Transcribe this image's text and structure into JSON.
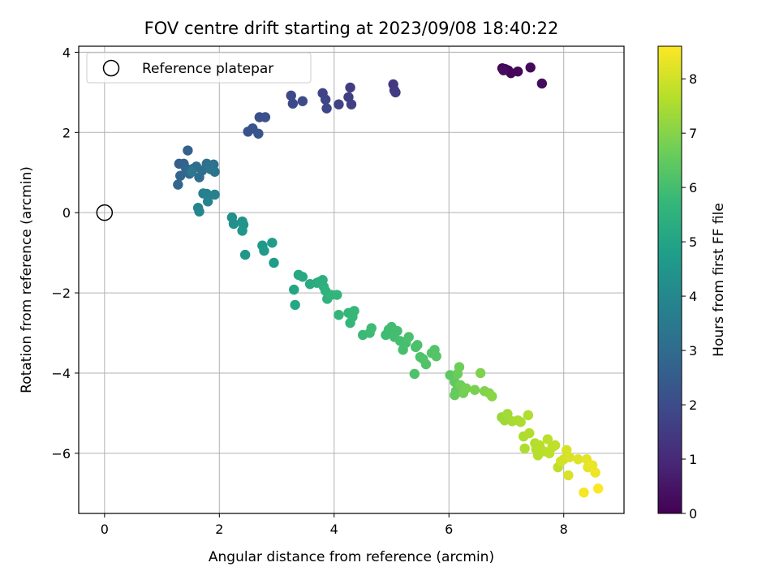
{
  "chart_data": {
    "type": "scatter",
    "title": "FOV centre drift starting at 2023/09/08 18:40:22",
    "xlabel": "Angular distance from reference (arcmin)",
    "ylabel": "Rotation from reference (arcmin)",
    "xlim": [
      -0.45,
      9.05
    ],
    "ylim": [
      -7.5,
      4.15
    ],
    "xticks": [
      "0",
      "2",
      "4",
      "6",
      "8"
    ],
    "yticks": [
      "−6",
      "−4",
      "−2",
      "0",
      "2",
      "4"
    ],
    "grid": true,
    "legend": {
      "position": "top-left",
      "entries": [
        "Reference platepar"
      ]
    },
    "colorbar": {
      "label": "Hours from first FF file",
      "range": [
        0,
        8.6
      ],
      "ticks": [
        "0",
        "1",
        "2",
        "3",
        "4",
        "5",
        "6",
        "7",
        "8"
      ],
      "colormap": [
        "#440154",
        "#482878",
        "#3e4989",
        "#31688e",
        "#26828e",
        "#1f9e89",
        "#35b779",
        "#6ece58",
        "#b5de2b",
        "#fde725"
      ]
    },
    "reference_point": {
      "x": 0,
      "y": 0
    },
    "points": [
      {
        "x": 6.93,
        "y": 3.6,
        "c": 0.02
      },
      {
        "x": 6.98,
        "y": 3.58,
        "c": 0.05
      },
      {
        "x": 7.03,
        "y": 3.55,
        "c": 0.08
      },
      {
        "x": 7.08,
        "y": 3.48,
        "c": 0.12
      },
      {
        "x": 7.2,
        "y": 3.52,
        "c": 0.15
      },
      {
        "x": 7.42,
        "y": 3.62,
        "c": 0.2
      },
      {
        "x": 7.62,
        "y": 3.22,
        "c": 0.25
      },
      {
        "x": 6.95,
        "y": 3.55,
        "c": 0.3
      },
      {
        "x": 5.03,
        "y": 3.2,
        "c": 1.4
      },
      {
        "x": 5.05,
        "y": 3.05,
        "c": 1.45
      },
      {
        "x": 5.07,
        "y": 3.0,
        "c": 1.5
      },
      {
        "x": 4.28,
        "y": 3.12,
        "c": 1.55
      },
      {
        "x": 4.25,
        "y": 2.88,
        "c": 1.6
      },
      {
        "x": 4.3,
        "y": 2.7,
        "c": 1.65
      },
      {
        "x": 4.08,
        "y": 2.7,
        "c": 1.7
      },
      {
        "x": 3.8,
        "y": 2.98,
        "c": 1.75
      },
      {
        "x": 3.85,
        "y": 2.82,
        "c": 1.8
      },
      {
        "x": 3.87,
        "y": 2.6,
        "c": 1.85
      },
      {
        "x": 3.25,
        "y": 2.92,
        "c": 1.9
      },
      {
        "x": 3.28,
        "y": 2.72,
        "c": 1.95
      },
      {
        "x": 3.45,
        "y": 2.78,
        "c": 2.0
      },
      {
        "x": 2.7,
        "y": 2.38,
        "c": 2.1
      },
      {
        "x": 2.8,
        "y": 2.38,
        "c": 2.15
      },
      {
        "x": 2.5,
        "y": 2.02,
        "c": 2.2
      },
      {
        "x": 2.58,
        "y": 2.1,
        "c": 2.25
      },
      {
        "x": 2.68,
        "y": 1.97,
        "c": 2.3
      },
      {
        "x": 1.3,
        "y": 1.22,
        "c": 2.6
      },
      {
        "x": 1.38,
        "y": 1.22,
        "c": 2.65
      },
      {
        "x": 1.45,
        "y": 1.55,
        "c": 2.7
      },
      {
        "x": 1.32,
        "y": 0.92,
        "c": 2.75
      },
      {
        "x": 1.28,
        "y": 0.7,
        "c": 2.8
      },
      {
        "x": 1.42,
        "y": 1.1,
        "c": 2.85
      },
      {
        "x": 1.48,
        "y": 0.97,
        "c": 2.9
      },
      {
        "x": 1.55,
        "y": 1.1,
        "c": 2.95
      },
      {
        "x": 1.6,
        "y": 1.15,
        "c": 3.0
      },
      {
        "x": 1.65,
        "y": 0.88,
        "c": 3.05
      },
      {
        "x": 1.7,
        "y": 1.05,
        "c": 3.1
      },
      {
        "x": 1.78,
        "y": 1.22,
        "c": 3.15
      },
      {
        "x": 1.82,
        "y": 1.15,
        "c": 3.2
      },
      {
        "x": 1.9,
        "y": 1.2,
        "c": 3.25
      },
      {
        "x": 1.92,
        "y": 1.02,
        "c": 3.3
      },
      {
        "x": 1.85,
        "y": 1.08,
        "c": 3.35
      },
      {
        "x": 1.52,
        "y": 1.02,
        "c": 3.4
      },
      {
        "x": 1.72,
        "y": 0.48,
        "c": 3.7
      },
      {
        "x": 1.78,
        "y": 0.47,
        "c": 3.75
      },
      {
        "x": 1.92,
        "y": 0.45,
        "c": 3.8
      },
      {
        "x": 1.8,
        "y": 0.28,
        "c": 3.85
      },
      {
        "x": 1.63,
        "y": 0.12,
        "c": 3.9
      },
      {
        "x": 1.65,
        "y": 0.03,
        "c": 3.95
      },
      {
        "x": 2.22,
        "y": -0.12,
        "c": 4.3
      },
      {
        "x": 2.25,
        "y": -0.28,
        "c": 4.35
      },
      {
        "x": 2.4,
        "y": -0.22,
        "c": 4.4
      },
      {
        "x": 2.42,
        "y": -0.3,
        "c": 4.45
      },
      {
        "x": 2.4,
        "y": -0.45,
        "c": 4.5
      },
      {
        "x": 2.45,
        "y": -1.05,
        "c": 4.55
      },
      {
        "x": 2.75,
        "y": -0.82,
        "c": 4.6
      },
      {
        "x": 2.78,
        "y": -0.95,
        "c": 4.65
      },
      {
        "x": 2.92,
        "y": -0.75,
        "c": 4.7
      },
      {
        "x": 2.95,
        "y": -1.25,
        "c": 4.75
      },
      {
        "x": 3.3,
        "y": -1.92,
        "c": 5.05
      },
      {
        "x": 3.32,
        "y": -2.3,
        "c": 5.1
      },
      {
        "x": 3.38,
        "y": -1.55,
        "c": 5.15
      },
      {
        "x": 3.45,
        "y": -1.6,
        "c": 5.2
      },
      {
        "x": 3.58,
        "y": -1.78,
        "c": 5.25
      },
      {
        "x": 3.7,
        "y": -1.75,
        "c": 5.3
      },
      {
        "x": 3.75,
        "y": -1.72,
        "c": 5.35
      },
      {
        "x": 3.8,
        "y": -1.68,
        "c": 5.4
      },
      {
        "x": 3.82,
        "y": -1.85,
        "c": 5.45
      },
      {
        "x": 3.85,
        "y": -1.95,
        "c": 5.5
      },
      {
        "x": 3.88,
        "y": -2.15,
        "c": 5.55
      },
      {
        "x": 3.95,
        "y": -2.05,
        "c": 5.6
      },
      {
        "x": 4.05,
        "y": -2.05,
        "c": 5.62
      },
      {
        "x": 4.08,
        "y": -2.55,
        "c": 5.65
      },
      {
        "x": 4.25,
        "y": -2.5,
        "c": 5.68
      },
      {
        "x": 4.28,
        "y": -2.75,
        "c": 5.7
      },
      {
        "x": 4.32,
        "y": -2.6,
        "c": 5.72
      },
      {
        "x": 4.35,
        "y": -2.45,
        "c": 5.75
      },
      {
        "x": 4.5,
        "y": -3.05,
        "c": 5.85
      },
      {
        "x": 4.62,
        "y": -3.0,
        "c": 5.87
      },
      {
        "x": 4.65,
        "y": -2.88,
        "c": 5.9
      },
      {
        "x": 4.9,
        "y": -3.05,
        "c": 5.92
      },
      {
        "x": 4.95,
        "y": -2.92,
        "c": 5.94
      },
      {
        "x": 5.0,
        "y": -2.85,
        "c": 5.96
      },
      {
        "x": 5.05,
        "y": -3.1,
        "c": 5.98
      },
      {
        "x": 5.1,
        "y": -2.95,
        "c": 6.0
      },
      {
        "x": 5.15,
        "y": -3.2,
        "c": 6.02
      },
      {
        "x": 5.2,
        "y": -3.42,
        "c": 6.04
      },
      {
        "x": 5.25,
        "y": -3.25,
        "c": 6.06
      },
      {
        "x": 5.3,
        "y": -3.1,
        "c": 6.08
      },
      {
        "x": 5.42,
        "y": -3.35,
        "c": 6.1
      },
      {
        "x": 5.45,
        "y": -3.3,
        "c": 6.12
      },
      {
        "x": 5.4,
        "y": -4.02,
        "c": 6.14
      },
      {
        "x": 5.5,
        "y": -3.6,
        "c": 6.16
      },
      {
        "x": 5.55,
        "y": -3.65,
        "c": 6.18
      },
      {
        "x": 5.6,
        "y": -3.78,
        "c": 6.2
      },
      {
        "x": 5.7,
        "y": -3.5,
        "c": 6.22
      },
      {
        "x": 5.75,
        "y": -3.42,
        "c": 6.24
      },
      {
        "x": 5.78,
        "y": -3.58,
        "c": 6.26
      },
      {
        "x": 6.02,
        "y": -4.05,
        "c": 6.4
      },
      {
        "x": 6.1,
        "y": -4.22,
        "c": 6.45
      },
      {
        "x": 6.12,
        "y": -4.45,
        "c": 6.5
      },
      {
        "x": 6.1,
        "y": -4.55,
        "c": 6.55
      },
      {
        "x": 6.15,
        "y": -4.02,
        "c": 6.6
      },
      {
        "x": 6.18,
        "y": -3.85,
        "c": 6.65
      },
      {
        "x": 6.2,
        "y": -4.3,
        "c": 6.7
      },
      {
        "x": 6.25,
        "y": -4.5,
        "c": 6.75
      },
      {
        "x": 6.3,
        "y": -4.38,
        "c": 6.8
      },
      {
        "x": 6.45,
        "y": -4.42,
        "c": 6.85
      },
      {
        "x": 6.55,
        "y": -4.0,
        "c": 6.9
      },
      {
        "x": 6.62,
        "y": -4.45,
        "c": 6.95
      },
      {
        "x": 6.7,
        "y": -4.5,
        "c": 7.0
      },
      {
        "x": 6.75,
        "y": -4.58,
        "c": 7.05
      },
      {
        "x": 6.92,
        "y": -5.1,
        "c": 7.3
      },
      {
        "x": 6.97,
        "y": -5.18,
        "c": 7.35
      },
      {
        "x": 7.02,
        "y": -5.02,
        "c": 7.4
      },
      {
        "x": 7.1,
        "y": -5.2,
        "c": 7.45
      },
      {
        "x": 7.2,
        "y": -5.18,
        "c": 7.5
      },
      {
        "x": 7.25,
        "y": -5.22,
        "c": 7.52
      },
      {
        "x": 7.3,
        "y": -5.58,
        "c": 7.54
      },
      {
        "x": 7.32,
        "y": -5.88,
        "c": 7.56
      },
      {
        "x": 7.38,
        "y": -5.05,
        "c": 7.58
      },
      {
        "x": 7.4,
        "y": -5.5,
        "c": 7.6
      },
      {
        "x": 7.5,
        "y": -5.75,
        "c": 7.62
      },
      {
        "x": 7.52,
        "y": -5.9,
        "c": 7.64
      },
      {
        "x": 7.55,
        "y": -6.05,
        "c": 7.66
      },
      {
        "x": 7.58,
        "y": -5.8,
        "c": 7.68
      },
      {
        "x": 7.65,
        "y": -5.95,
        "c": 7.7
      },
      {
        "x": 7.72,
        "y": -5.65,
        "c": 7.72
      },
      {
        "x": 7.75,
        "y": -6.0,
        "c": 7.74
      },
      {
        "x": 7.8,
        "y": -5.85,
        "c": 7.76
      },
      {
        "x": 7.85,
        "y": -5.8,
        "c": 7.78
      },
      {
        "x": 7.9,
        "y": -6.35,
        "c": 7.8
      },
      {
        "x": 7.95,
        "y": -6.2,
        "c": 8.0
      },
      {
        "x": 8.0,
        "y": -6.15,
        "c": 8.03
      },
      {
        "x": 8.05,
        "y": -5.92,
        "c": 8.06
      },
      {
        "x": 8.08,
        "y": -6.55,
        "c": 8.09
      },
      {
        "x": 8.1,
        "y": -6.1,
        "c": 8.12
      },
      {
        "x": 8.25,
        "y": -6.15,
        "c": 8.2
      },
      {
        "x": 8.4,
        "y": -6.15,
        "c": 8.25
      },
      {
        "x": 8.42,
        "y": -6.35,
        "c": 8.3
      },
      {
        "x": 8.5,
        "y": -6.3,
        "c": 8.35
      },
      {
        "x": 8.55,
        "y": -6.48,
        "c": 8.4
      },
      {
        "x": 8.35,
        "y": -6.98,
        "c": 8.5
      },
      {
        "x": 8.6,
        "y": -6.88,
        "c": 8.58
      }
    ]
  }
}
